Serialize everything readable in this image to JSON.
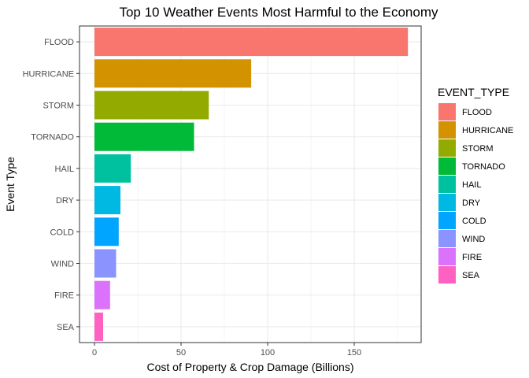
{
  "chart_data": {
    "type": "bar",
    "orientation": "horizontal",
    "title": "Top 10 Weather Events Most Harmful to the Economy",
    "xlabel": "Cost of Property & Crop Damage (Billions)",
    "ylabel": "Event Type",
    "xlim": [
      0,
      190
    ],
    "xticks": [
      0,
      50,
      100,
      150
    ],
    "grid": true,
    "legend_title": "EVENT_TYPE",
    "legend_position": "right",
    "categories": [
      "FLOOD",
      "HURRICANE",
      "STORM",
      "TORNADO",
      "HAIL",
      "DRY",
      "COLD",
      "WIND",
      "FIRE",
      "SEA"
    ],
    "values": [
      181,
      90.5,
      66,
      57.5,
      21,
      15,
      14,
      12.5,
      9,
      5
    ],
    "colors": [
      "#F8766D",
      "#D39200",
      "#93AA00",
      "#00BA38",
      "#00C19F",
      "#00B9E3",
      "#00A5FF",
      "#8B93FF",
      "#DB72FB",
      "#FF61C3"
    ]
  }
}
